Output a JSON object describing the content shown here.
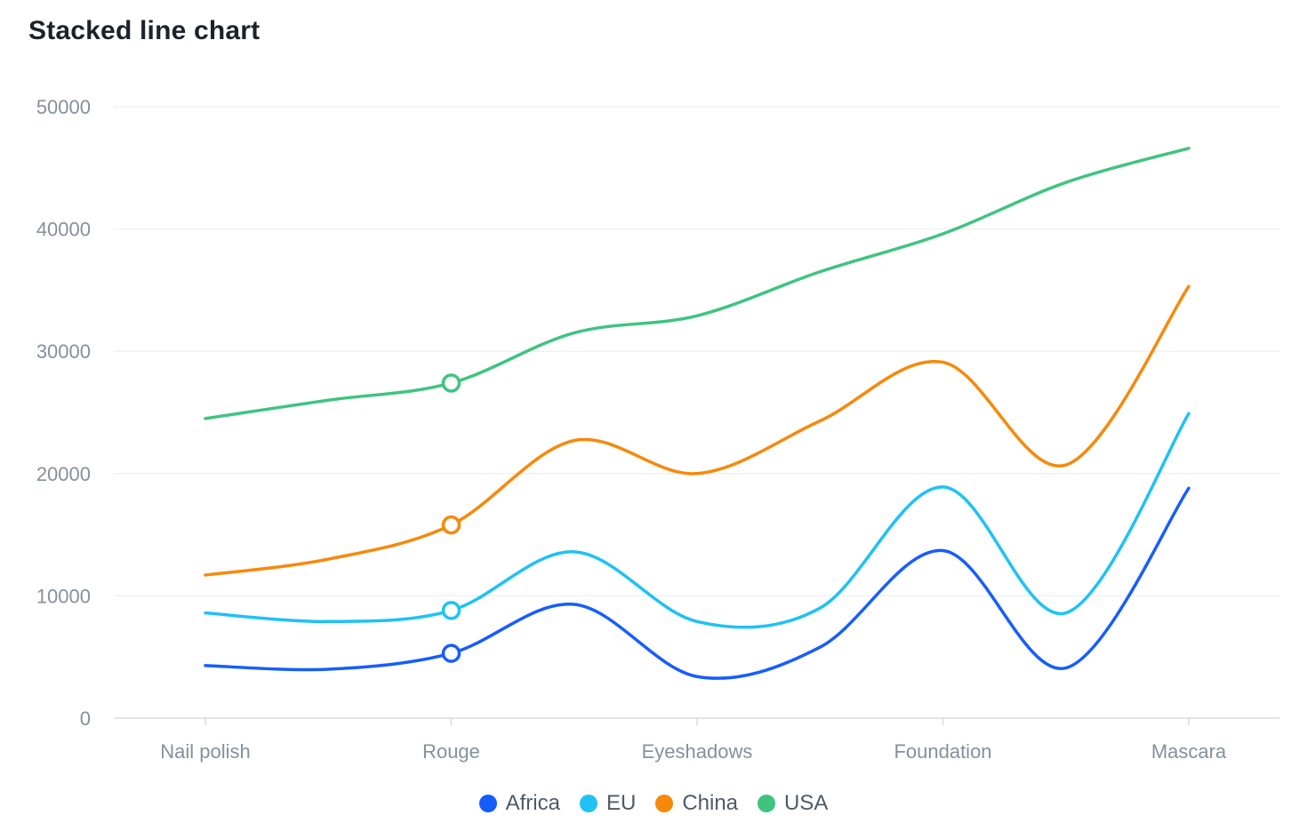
{
  "title": "Stacked line chart",
  "chart_data": {
    "type": "line",
    "stacked": true,
    "title": "Stacked line chart",
    "categories": [
      "Nail polish",
      "Rouge",
      "Eyeshadows",
      "Foundation",
      "Mascara"
    ],
    "x": [
      0,
      0.5,
      1,
      1.5,
      2,
      2.5,
      3,
      3.5,
      4
    ],
    "ylim": [
      0,
      50000
    ],
    "yticks": [
      0,
      10000,
      20000,
      30000,
      40000,
      50000
    ],
    "grid": true,
    "legend_position": "bottom",
    "highlight_index": 2,
    "series": [
      {
        "name": "Africa",
        "color": "#165dff",
        "values": [
          4300,
          4000,
          5300,
          9300,
          3400,
          5800,
          13700,
          4100,
          18800
        ]
      },
      {
        "name": "EU",
        "color": "#14c9c9",
        "values": [
          8600,
          7900,
          8800,
          13600,
          7900,
          9000,
          18900,
          8600,
          24900
        ]
      },
      {
        "name": "China",
        "color": "#f7890a",
        "values": [
          11700,
          13000,
          15800,
          22700,
          20000,
          24300,
          29100,
          20700,
          35300
        ]
      },
      {
        "name": "USA",
        "color": "#3fc480",
        "values": [
          24500,
          26000,
          27400,
          31500,
          32900,
          36500,
          39600,
          43800,
          46600
        ]
      }
    ]
  }
}
